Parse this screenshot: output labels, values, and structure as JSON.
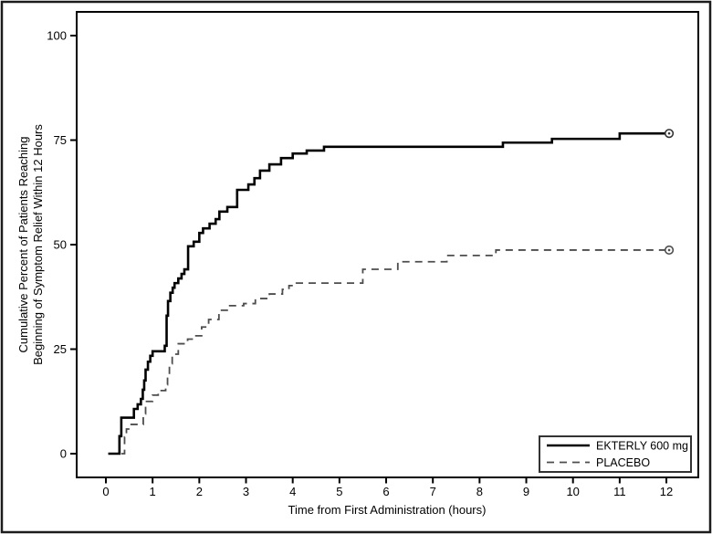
{
  "figure": {
    "background": "#ffffff",
    "border_color": "#1c1c1c",
    "frame_color": "#000000"
  },
  "chart_data": {
    "type": "line",
    "subtype": "kaplan-meier-step",
    "title": "",
    "xlabel": "Time from First Administration (hours)",
    "ylabel_line1": "Cumulative Percent of Patients Reaching",
    "ylabel_line2": "Beginning of Symptom Relief Within 12 Hours",
    "xlim": [
      0,
      12
    ],
    "ylim": [
      0,
      100
    ],
    "x_ticks": [
      0,
      1,
      2,
      3,
      4,
      5,
      6,
      7,
      8,
      9,
      10,
      11,
      12
    ],
    "y_ticks": [
      0,
      25,
      50,
      75,
      100
    ],
    "grid": false,
    "legend_position": "inside-bottom-right",
    "series": [
      {
        "name": "EKTERLY 600 mg",
        "line_style": "solid",
        "color": "#000000",
        "stroke_width": 2.6,
        "end_marker": "circle-dot",
        "steps": [
          [
            0.05,
            0
          ],
          [
            0.29,
            4.2
          ],
          [
            0.33,
            8.6
          ],
          [
            0.6,
            10.7
          ],
          [
            0.68,
            11.8
          ],
          [
            0.75,
            13.1
          ],
          [
            0.79,
            15.3
          ],
          [
            0.82,
            17.5
          ],
          [
            0.85,
            20.1
          ],
          [
            0.9,
            22.0
          ],
          [
            0.95,
            23.4
          ],
          [
            1.0,
            24.5
          ],
          [
            1.26,
            25.8
          ],
          [
            1.3,
            33.0
          ],
          [
            1.33,
            36.5
          ],
          [
            1.38,
            38.5
          ],
          [
            1.43,
            39.7
          ],
          [
            1.47,
            40.8
          ],
          [
            1.55,
            41.9
          ],
          [
            1.62,
            43.0
          ],
          [
            1.68,
            44.1
          ],
          [
            1.76,
            49.6
          ],
          [
            1.88,
            50.7
          ],
          [
            2.0,
            52.8
          ],
          [
            2.08,
            53.9
          ],
          [
            2.22,
            55.0
          ],
          [
            2.35,
            56.1
          ],
          [
            2.43,
            57.9
          ],
          [
            2.6,
            59.0
          ],
          [
            2.81,
            63.1
          ],
          [
            3.05,
            64.4
          ],
          [
            3.18,
            65.9
          ],
          [
            3.3,
            67.7
          ],
          [
            3.5,
            69.2
          ],
          [
            3.75,
            70.7
          ],
          [
            4.0,
            71.8
          ],
          [
            4.3,
            72.5
          ],
          [
            4.67,
            73.4
          ],
          [
            8.5,
            74.4
          ],
          [
            9.55,
            75.3
          ],
          [
            11.0,
            76.6
          ]
        ],
        "end": [
          12,
          76.6
        ]
      },
      {
        "name": "PLACEBO",
        "line_style": "dashed",
        "color": "#4d4d4d",
        "stroke_width": 1.8,
        "end_marker": "circle-dot",
        "steps": [
          [
            0.33,
            0
          ],
          [
            0.4,
            4.0
          ],
          [
            0.44,
            5.9
          ],
          [
            0.52,
            7.0
          ],
          [
            0.8,
            9.5
          ],
          [
            0.85,
            12.5
          ],
          [
            1.0,
            14.0
          ],
          [
            1.12,
            15.1
          ],
          [
            1.28,
            16.5
          ],
          [
            1.32,
            19.0
          ],
          [
            1.36,
            21.5
          ],
          [
            1.42,
            23.8
          ],
          [
            1.55,
            26.3
          ],
          [
            1.75,
            27.4
          ],
          [
            1.9,
            28.2
          ],
          [
            2.05,
            30.3
          ],
          [
            2.2,
            32.1
          ],
          [
            2.42,
            34.3
          ],
          [
            2.62,
            35.4
          ],
          [
            2.95,
            35.9
          ],
          [
            3.2,
            37.1
          ],
          [
            3.5,
            38.2
          ],
          [
            3.78,
            39.3
          ],
          [
            3.92,
            40.2
          ],
          [
            4.08,
            40.8
          ],
          [
            5.5,
            44.1
          ],
          [
            6.25,
            45.9
          ],
          [
            7.3,
            47.4
          ],
          [
            8.35,
            48.7
          ]
        ],
        "end": [
          12,
          48.7
        ]
      }
    ]
  }
}
